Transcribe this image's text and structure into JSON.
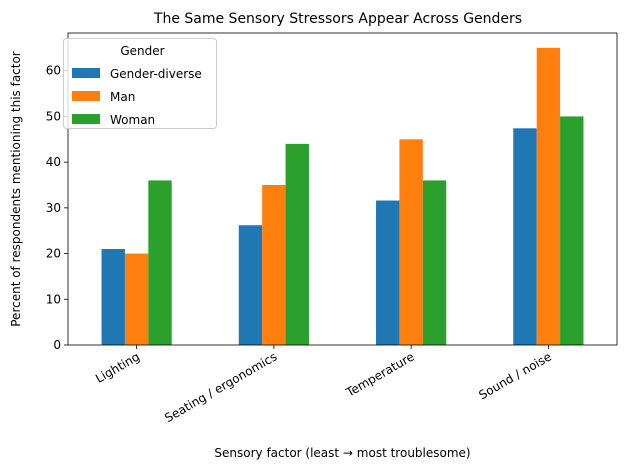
{
  "chart_data": {
    "type": "bar",
    "title": "The Same Sensory Stressors Appear Across Genders",
    "xlabel": "Sensory factor (least → most troublesome)",
    "ylabel": "Percent of respondents mentioning this factor",
    "categories": [
      "Lighting",
      "Seating / ergonomics",
      "Temperature",
      "Sound / noise"
    ],
    "series": [
      {
        "name": "Gender-diverse",
        "color": "#1f77b4",
        "values": [
          21.0,
          26.2,
          31.6,
          47.4
        ]
      },
      {
        "name": "Man",
        "color": "#ff7f0e",
        "values": [
          20.0,
          35.0,
          45.0,
          65.0
        ]
      },
      {
        "name": "Woman",
        "color": "#2ca02c",
        "values": [
          36.0,
          44.0,
          36.0,
          50.0
        ]
      }
    ],
    "ylim": [
      0,
      68.25
    ],
    "yticks": [
      0,
      10,
      20,
      30,
      40,
      50,
      60
    ],
    "legend_title": "Gender",
    "legend_position": "top-left",
    "grid": false
  }
}
